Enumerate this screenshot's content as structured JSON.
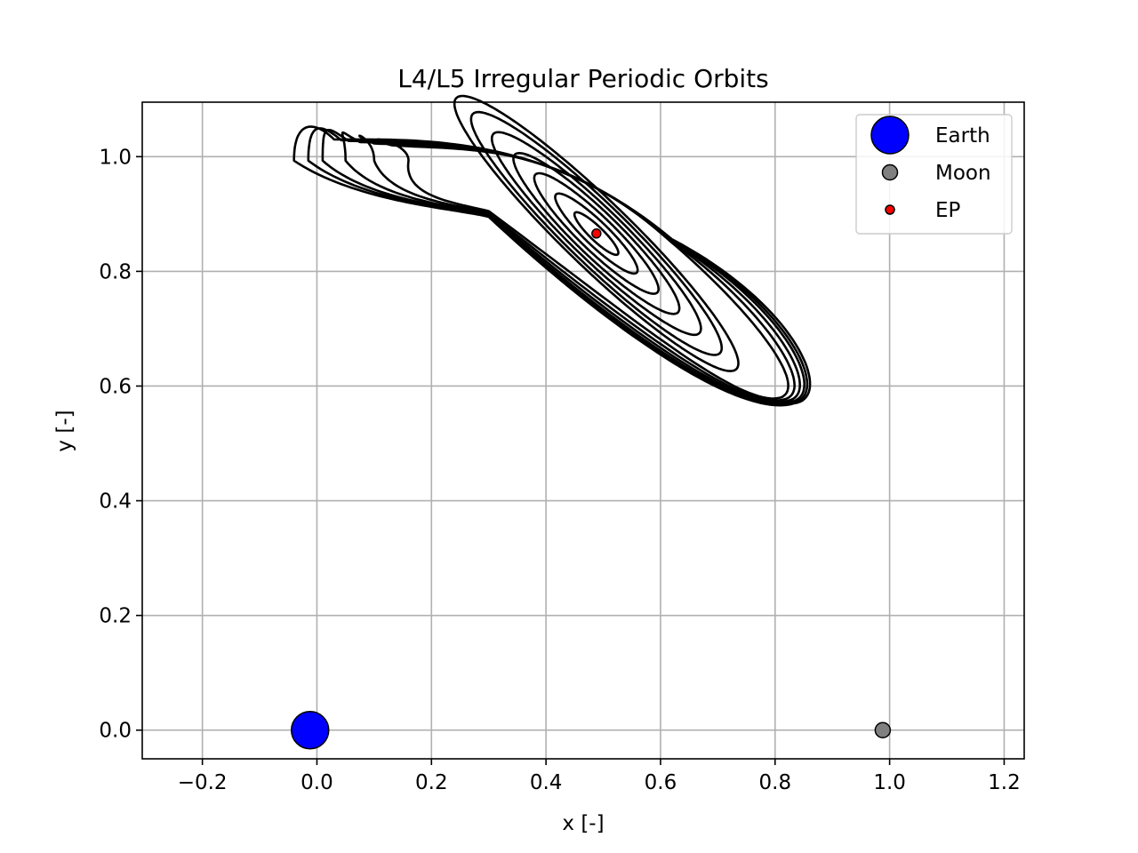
{
  "chart_data": {
    "type": "line",
    "title": "L4/L5 Irregular Periodic Orbits",
    "xlabel": "x [-]",
    "ylabel": "y [-]",
    "xlim": [
      -0.305,
      1.235
    ],
    "ylim": [
      -0.05,
      1.095
    ],
    "xticks": [
      -0.2,
      0.0,
      0.2,
      0.4,
      0.6,
      0.8,
      1.0,
      1.2
    ],
    "xtick_labels": [
      "−0.2",
      "0.0",
      "0.2",
      "0.4",
      "0.6",
      "0.8",
      "1.0",
      "1.2"
    ],
    "yticks": [
      0.0,
      0.2,
      0.4,
      0.6,
      0.8,
      1.0
    ],
    "ytick_labels": [
      "0.0",
      "0.2",
      "0.4",
      "0.6",
      "0.8",
      "1.0"
    ],
    "grid": true,
    "legend_position": "top-right",
    "equilibrium_point": {
      "x": 0.488,
      "y": 0.866
    },
    "orbits": [
      {
        "family": "ellipse",
        "a": 0.052,
        "b": 0.012
      },
      {
        "family": "ellipse",
        "a": 0.098,
        "b": 0.021
      },
      {
        "family": "ellipse",
        "a": 0.148,
        "b": 0.03
      },
      {
        "family": "ellipse",
        "a": 0.198,
        "b": 0.038
      },
      {
        "family": "ellipse",
        "a": 0.25,
        "b": 0.045
      },
      {
        "family": "ellipse",
        "a": 0.3,
        "b": 0.052
      },
      {
        "family": "ellipse",
        "a": 0.34,
        "b": 0.058
      },
      {
        "family": "tadpole",
        "left_x": 0.16
      },
      {
        "family": "tadpole",
        "left_x": 0.1
      },
      {
        "family": "tadpole",
        "left_x": 0.05
      },
      {
        "family": "tadpole",
        "left_x": 0.01
      },
      {
        "family": "tadpole",
        "left_x": -0.015
      },
      {
        "family": "tadpole",
        "left_x": -0.04
      }
    ],
    "orbit_tilt_deg": -44,
    "orbit_color": "#000000",
    "bodies": [
      {
        "name": "Earth",
        "x": -0.012,
        "y": 0.0,
        "color": "#0000ff",
        "marker_size": "large"
      },
      {
        "name": "Moon",
        "x": 0.988,
        "y": 0.0,
        "color": "#808080",
        "marker_size": "medium"
      },
      {
        "name": "EP",
        "x": 0.488,
        "y": 0.866,
        "color": "#ff0000",
        "marker_size": "small"
      }
    ]
  }
}
